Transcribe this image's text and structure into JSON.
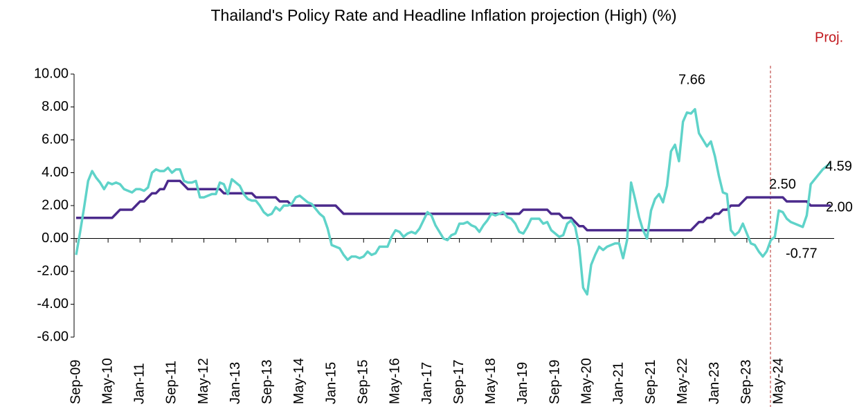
{
  "chart_data": {
    "type": "line",
    "title": "Thailand's Policy Rate and Headline Inflation  projection (High) (%)",
    "projection_label": "Proj.",
    "categories": [
      "Sep-09",
      null,
      null,
      null,
      null,
      null,
      null,
      null,
      "May-10",
      null,
      null,
      null,
      null,
      null,
      null,
      null,
      "Jan-11",
      null,
      null,
      null,
      null,
      null,
      null,
      null,
      "Sep-11",
      null,
      null,
      null,
      null,
      null,
      null,
      null,
      "May-12",
      null,
      null,
      null,
      null,
      null,
      null,
      null,
      "Jan-13",
      null,
      null,
      null,
      null,
      null,
      null,
      null,
      "Sep-13",
      null,
      null,
      null,
      null,
      null,
      null,
      null,
      "May-14",
      null,
      null,
      null,
      null,
      null,
      null,
      null,
      "Jan-15",
      null,
      null,
      null,
      null,
      null,
      null,
      null,
      "Sep-15",
      null,
      null,
      null,
      null,
      null,
      null,
      null,
      "May-16",
      null,
      null,
      null,
      null,
      null,
      null,
      null,
      "Jan-17",
      null,
      null,
      null,
      null,
      null,
      null,
      null,
      "Sep-17",
      null,
      null,
      null,
      null,
      null,
      null,
      null,
      "May-18",
      null,
      null,
      null,
      null,
      null,
      null,
      null,
      "Jan-19",
      null,
      null,
      null,
      null,
      null,
      null,
      null,
      "Sep-19",
      null,
      null,
      null,
      null,
      null,
      null,
      null,
      "May-20",
      null,
      null,
      null,
      null,
      null,
      null,
      null,
      "Jan-21",
      null,
      null,
      null,
      null,
      null,
      null,
      null,
      "Sep-21",
      null,
      null,
      null,
      null,
      null,
      null,
      null,
      "May-22",
      null,
      null,
      null,
      null,
      null,
      null,
      null,
      "Jan-23",
      null,
      null,
      null,
      null,
      null,
      null,
      null,
      "Sep-23",
      null,
      null,
      null,
      null,
      null,
      null,
      null,
      "May-24",
      null,
      null,
      null,
      null,
      null,
      null,
      null,
      null,
      null,
      null,
      null,
      null,
      null
    ],
    "series": [
      {
        "color": "#4b2a8c",
        "values": [
          1.25,
          1.25,
          1.25,
          1.25,
          1.25,
          1.25,
          1.25,
          1.25,
          1.25,
          1.25,
          1.5,
          1.75,
          1.75,
          1.75,
          1.75,
          2.0,
          2.25,
          2.25,
          2.5,
          2.75,
          2.75,
          3.0,
          3.0,
          3.5,
          3.5,
          3.5,
          3.5,
          3.25,
          3.0,
          3.0,
          3.0,
          3.0,
          3.0,
          3.0,
          3.0,
          3.0,
          3.0,
          2.75,
          2.75,
          2.75,
          2.75,
          2.75,
          2.75,
          2.75,
          2.75,
          2.5,
          2.5,
          2.5,
          2.5,
          2.5,
          2.5,
          2.25,
          2.25,
          2.25,
          2.0,
          2.0,
          2.0,
          2.0,
          2.0,
          2.0,
          2.0,
          2.0,
          2.0,
          2.0,
          2.0,
          2.0,
          1.75,
          1.5,
          1.5,
          1.5,
          1.5,
          1.5,
          1.5,
          1.5,
          1.5,
          1.5,
          1.5,
          1.5,
          1.5,
          1.5,
          1.5,
          1.5,
          1.5,
          1.5,
          1.5,
          1.5,
          1.5,
          1.5,
          1.5,
          1.5,
          1.5,
          1.5,
          1.5,
          1.5,
          1.5,
          1.5,
          1.5,
          1.5,
          1.5,
          1.5,
          1.5,
          1.5,
          1.5,
          1.5,
          1.5,
          1.5,
          1.5,
          1.5,
          1.5,
          1.5,
          1.5,
          1.5,
          1.75,
          1.75,
          1.75,
          1.75,
          1.75,
          1.75,
          1.75,
          1.5,
          1.5,
          1.5,
          1.25,
          1.25,
          1.25,
          1.0,
          0.75,
          0.75,
          0.5,
          0.5,
          0.5,
          0.5,
          0.5,
          0.5,
          0.5,
          0.5,
          0.5,
          0.5,
          0.5,
          0.5,
          0.5,
          0.5,
          0.5,
          0.5,
          0.5,
          0.5,
          0.5,
          0.5,
          0.5,
          0.5,
          0.5,
          0.5,
          0.5,
          0.5,
          0.5,
          0.75,
          1.0,
          1.0,
          1.25,
          1.25,
          1.5,
          1.5,
          1.75,
          1.75,
          2.0,
          2.0,
          2.0,
          2.25,
          2.5,
          2.5,
          2.5,
          2.5,
          2.5,
          2.5,
          2.5,
          2.5,
          2.5,
          2.5,
          2.25,
          2.25,
          2.25,
          2.25,
          2.25,
          2.25,
          2.0,
          2.0,
          2.0,
          2.0,
          2.0,
          2.0
        ]
      },
      {
        "color": "#5fd3c9",
        "values": [
          -1.0,
          0.4,
          1.9,
          3.5,
          4.1,
          3.7,
          3.4,
          3.0,
          3.4,
          3.3,
          3.4,
          3.3,
          3.0,
          2.9,
          2.8,
          3.0,
          3.0,
          2.9,
          3.1,
          4.0,
          4.2,
          4.1,
          4.1,
          4.3,
          4.0,
          4.2,
          4.2,
          3.5,
          3.4,
          3.4,
          3.5,
          2.5,
          2.5,
          2.6,
          2.7,
          2.7,
          3.4,
          3.3,
          2.7,
          3.6,
          3.4,
          3.2,
          2.7,
          2.4,
          2.3,
          2.3,
          2.0,
          1.6,
          1.4,
          1.5,
          1.9,
          1.7,
          2.0,
          2.0,
          2.1,
          2.5,
          2.6,
          2.4,
          2.2,
          2.1,
          1.8,
          1.5,
          1.3,
          0.6,
          -0.4,
          -0.5,
          -0.6,
          -1.0,
          -1.3,
          -1.1,
          -1.1,
          -1.2,
          -1.1,
          -0.8,
          -1.0,
          -0.9,
          -0.5,
          -0.5,
          -0.5,
          0.1,
          0.5,
          0.4,
          0.1,
          0.3,
          0.4,
          0.3,
          0.6,
          1.1,
          1.6,
          1.4,
          0.8,
          0.4,
          0.0,
          -0.1,
          0.2,
          0.3,
          0.9,
          0.9,
          1.0,
          0.8,
          0.7,
          0.4,
          0.8,
          1.1,
          1.5,
          1.4,
          1.5,
          1.6,
          1.3,
          1.2,
          0.9,
          0.4,
          0.3,
          0.7,
          1.2,
          1.2,
          1.2,
          0.9,
          1.0,
          0.5,
          0.3,
          0.1,
          0.2,
          0.9,
          1.1,
          0.7,
          -0.5,
          -3.0,
          -3.4,
          -1.6,
          -1.0,
          -0.5,
          -0.7,
          -0.5,
          -0.4,
          -0.3,
          -0.3,
          -1.2,
          -0.1,
          3.4,
          2.4,
          1.3,
          0.5,
          0.0,
          1.7,
          2.4,
          2.7,
          2.2,
          3.2,
          5.3,
          5.7,
          4.7,
          7.1,
          7.66,
          7.6,
          7.86,
          6.4,
          6.0,
          5.6,
          5.9,
          5.0,
          3.8,
          2.8,
          2.7,
          0.5,
          0.2,
          0.4,
          0.9,
          0.3,
          -0.3,
          -0.4,
          -0.8,
          -1.1,
          -0.77,
          -0.1,
          0.1,
          1.7,
          1.6,
          1.2,
          1.0,
          0.9,
          0.8,
          0.7,
          1.4,
          3.3,
          3.6,
          3.9,
          4.2,
          4.4,
          4.59
        ]
      }
    ],
    "annotations": [
      "7.66",
      "2.50",
      "4.59",
      "2.00",
      "-0.77"
    ],
    "ylim": [
      -6,
      10
    ],
    "yticks": [
      {
        "value": 10,
        "label": "10.00"
      },
      {
        "value": 8,
        "label": "8.00"
      },
      {
        "value": 6,
        "label": "6.00"
      },
      {
        "value": 4,
        "label": "4.00"
      },
      {
        "value": 2,
        "label": "2.00"
      },
      {
        "value": 0,
        "label": "0.00"
      },
      {
        "value": -2,
        "label": "-2.00"
      },
      {
        "value": -4,
        "label": "-4.00"
      },
      {
        "value": -6,
        "label": "-6.00"
      }
    ],
    "grid": false
  }
}
